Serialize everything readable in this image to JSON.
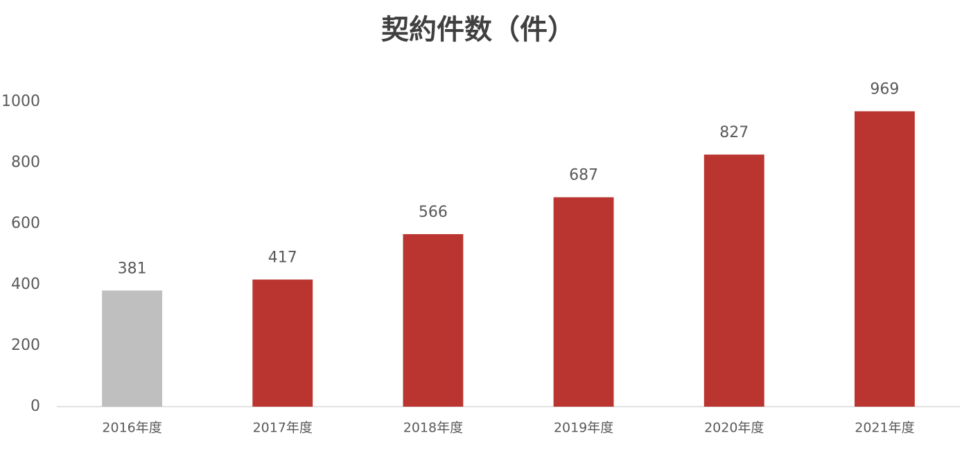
{
  "chart_data": {
    "type": "bar",
    "title": "契約件数（件）",
    "categories": [
      "2016年度",
      "2017年度",
      "2018年度",
      "2019年度",
      "2020年度",
      "2021年度"
    ],
    "values": [
      381,
      417,
      566,
      687,
      827,
      969
    ],
    "colors": [
      "#bfbfbf",
      "#bb3530",
      "#bb3530",
      "#bb3530",
      "#bb3530",
      "#bb3530"
    ],
    "ylim": [
      0,
      1000
    ],
    "yticks": [
      0,
      200,
      400,
      600,
      800,
      1000
    ],
    "grid": false
  }
}
